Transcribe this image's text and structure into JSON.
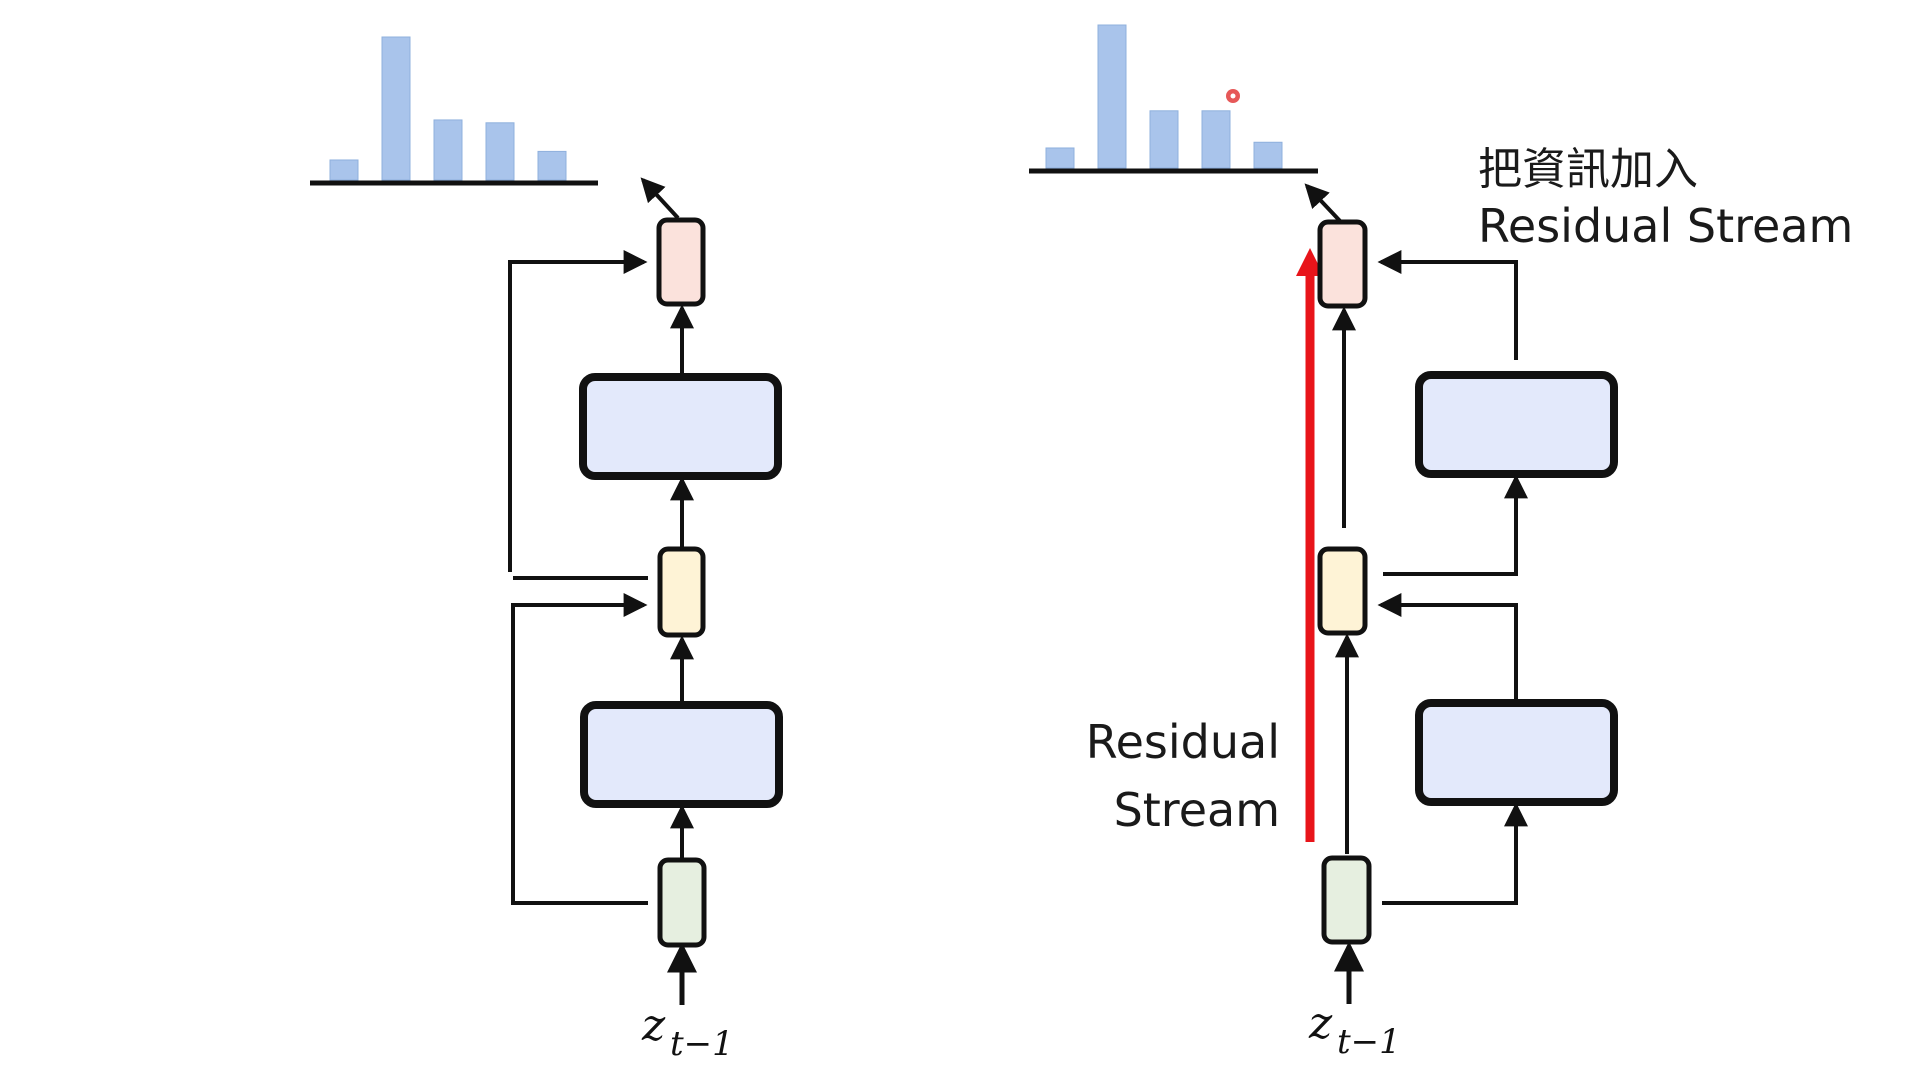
{
  "left_diagram": {
    "input_label": "z",
    "input_subscript": "t−1",
    "distribution": [
      0.14,
      1.0,
      0.42,
      0.4,
      0.2
    ]
  },
  "right_diagram": {
    "input_label": "z",
    "input_subscript": "t−1",
    "distribution": [
      0.14,
      1.0,
      0.4,
      0.4,
      0.18
    ],
    "residual_stream_label_line1": "Residual",
    "residual_stream_label_line2": "Stream",
    "annotation_line1": "把資訊加入",
    "annotation_line2": "Residual Stream"
  },
  "colors": {
    "bar_fill": "#a9c4eb",
    "block_fill": "#e3e9fb",
    "output_node_fill": "#fbe2dc",
    "middle_node_fill": "#fef3d6",
    "input_node_fill": "#e6efe0",
    "residual_arrow": "#e8141a",
    "cursor_dot": "#e23b3b"
  }
}
